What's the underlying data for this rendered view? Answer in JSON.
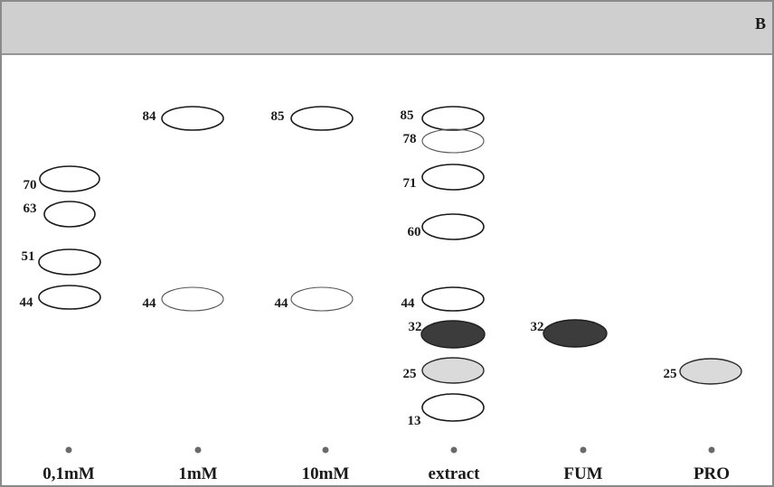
{
  "panel_label": "B",
  "lanes": [
    {
      "label": "0,1mM",
      "spots": [
        {
          "value": "70",
          "style": "outline"
        },
        {
          "value": "63",
          "style": "outline"
        },
        {
          "value": "51",
          "style": "outline"
        },
        {
          "value": "44",
          "style": "outline"
        }
      ]
    },
    {
      "label": "1mM",
      "spots": [
        {
          "value": "84",
          "style": "outline"
        },
        {
          "value": "44",
          "style": "faint-outline"
        }
      ]
    },
    {
      "label": "10mM",
      "spots": [
        {
          "value": "85",
          "style": "outline"
        },
        {
          "value": "44",
          "style": "faint-outline"
        }
      ]
    },
    {
      "label": "extract",
      "spots": [
        {
          "value": "85",
          "style": "outline"
        },
        {
          "value": "78",
          "style": "faint-outline"
        },
        {
          "value": "71",
          "style": "outline"
        },
        {
          "value": "60",
          "style": "outline"
        },
        {
          "value": "44",
          "style": "outline"
        },
        {
          "value": "32",
          "style": "dark"
        },
        {
          "value": "25",
          "style": "light"
        },
        {
          "value": "13",
          "style": "outline"
        }
      ]
    },
    {
      "label": "FUM",
      "spots": [
        {
          "value": "32",
          "style": "dark"
        }
      ]
    },
    {
      "label": "PRO",
      "spots": [
        {
          "value": "25",
          "style": "light"
        }
      ]
    }
  ],
  "colors": {
    "header_band": "#cfcfcf",
    "frame": "#8a8a8a",
    "dark_spot": "#3c3c3c",
    "light_spot": "#dadada",
    "origin_dot": "#6a6a6a"
  }
}
